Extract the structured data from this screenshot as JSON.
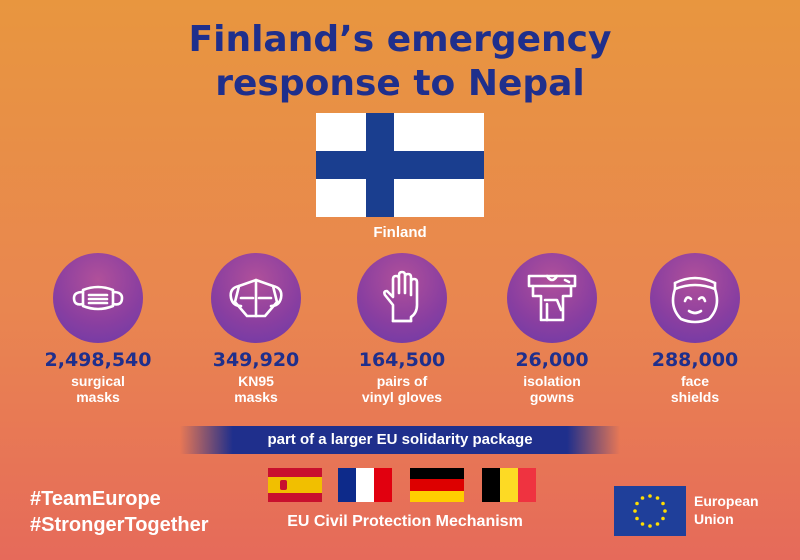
{
  "title": {
    "line1": "Finland’s emergency",
    "line2": "response to Nepal"
  },
  "country_flag": {
    "label": "Finland",
    "colors": {
      "field": "#ffffff",
      "cross": "#1a3e8f"
    }
  },
  "items": [
    {
      "icon": "surgical-mask-icon",
      "value": "2,498,540",
      "label_line1": "surgical",
      "label_line2": "masks"
    },
    {
      "icon": "kn95-mask-icon",
      "value": "349,920",
      "label_line1": "KN95",
      "label_line2": "masks"
    },
    {
      "icon": "glove-icon",
      "value": "164,500",
      "label_line1": "pairs of",
      "label_line2": "vinyl gloves"
    },
    {
      "icon": "gown-icon",
      "value": "26,000",
      "label_line1": "isolation",
      "label_line2": "gowns"
    },
    {
      "icon": "face-shield-icon",
      "value": "288,000",
      "label_line1": "face",
      "label_line2": "shields"
    }
  ],
  "banner": {
    "text": "part of a larger EU solidarity package"
  },
  "hashtags": {
    "line1": "#TeamEurope",
    "line2": "#StrongerTogether"
  },
  "member_flags": [
    "spain-flag",
    "france-flag",
    "germany-flag",
    "belgium-flag"
  ],
  "mechanism": {
    "text": "EU Civil Protection Mechanism"
  },
  "eu_logo": {
    "line1": "European",
    "line2": "Union"
  },
  "colors": {
    "title": "#1f2f8c",
    "icon_circle": "#8b3fa0",
    "background_top": "#e8963f",
    "background_bottom": "#e66a5a"
  }
}
